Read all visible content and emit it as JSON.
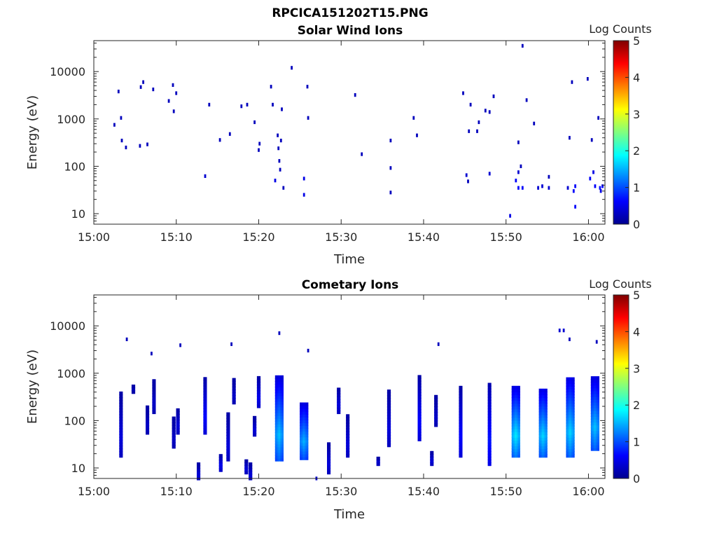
{
  "figure": {
    "title": "RPCICA151202T15.PNG"
  },
  "chart_data": [
    {
      "type": "heatmap",
      "title": "Solar Wind Ions",
      "xlabel": "Time",
      "ylabel": "Energy (eV)",
      "x_ticks": [
        "15:00",
        "15:10",
        "15:20",
        "15:30",
        "15:40",
        "15:50",
        "16:00"
      ],
      "xlim": [
        "15:00",
        "16:02"
      ],
      "y_scale": "log",
      "y_ticks": [
        "10",
        "100",
        "1000",
        "10000"
      ],
      "ylim": [
        6,
        45000
      ],
      "colorbar": {
        "label": "Log Counts",
        "ticks": [
          "0",
          "1",
          "2",
          "3",
          "4",
          "5"
        ],
        "range": [
          0,
          5
        ],
        "colormap": "jet"
      },
      "cells": [
        [
          "15:02.5",
          750,
          0.3
        ],
        [
          "15:03.0",
          3800,
          0.3
        ],
        [
          "15:03.3",
          1050,
          0.3
        ],
        [
          "15:03.4",
          350,
          0.3
        ],
        [
          "15:03.9",
          250,
          0.3
        ],
        [
          "15:05.6",
          270,
          0.3
        ],
        [
          "15:05.7",
          4700,
          0.3
        ],
        [
          "15:06.0",
          6000,
          0.3
        ],
        [
          "15:06.5",
          290,
          0.3
        ],
        [
          "15:07.2",
          4200,
          0.3
        ],
        [
          "15:09.1",
          2400,
          0.3
        ],
        [
          "15:09.6",
          5200,
          0.3
        ],
        [
          "15:09.7",
          1450,
          0.3
        ],
        [
          "15:10.0",
          3500,
          0.3
        ],
        [
          "15:13.5",
          62,
          0.4
        ],
        [
          "15:14.0",
          2000,
          0.3
        ],
        [
          "15:15.3",
          360,
          0.3
        ],
        [
          "15:16.5",
          480,
          0.3
        ],
        [
          "15:17.9",
          1850,
          0.3
        ],
        [
          "15:18.6",
          2000,
          0.3
        ],
        [
          "15:19.5",
          850,
          0.3
        ],
        [
          "15:20.0",
          220,
          0.3
        ],
        [
          "15:20.1",
          300,
          0.3
        ],
        [
          "15:21.5",
          4800,
          0.3
        ],
        [
          "15:21.7",
          2000,
          0.3
        ],
        [
          "15:22.0",
          50,
          0.5
        ],
        [
          "15:22.3",
          450,
          0.3
        ],
        [
          "15:22.4",
          240,
          0.3
        ],
        [
          "15:22.5",
          130,
          0.3
        ],
        [
          "15:22.6",
          85,
          0.3
        ],
        [
          "15:22.7",
          350,
          0.3
        ],
        [
          "15:22.8",
          1600,
          0.3
        ],
        [
          "15:23.0",
          35,
          0.3
        ],
        [
          "15:24.0",
          12000,
          0.3
        ],
        [
          "15:25.5",
          55,
          0.5
        ],
        [
          "15:25.5",
          25,
          0.5
        ],
        [
          "15:25.9",
          4800,
          0.3
        ],
        [
          "15:26.0",
          1050,
          0.3
        ],
        [
          "15:31.7",
          3200,
          0.3
        ],
        [
          "15:32.5",
          180,
          0.3
        ],
        [
          "15:36.0",
          350,
          0.3
        ],
        [
          "15:36.0",
          92,
          0.3
        ],
        [
          "15:36.0",
          28,
          0.3
        ],
        [
          "15:38.8",
          1050,
          0.3
        ],
        [
          "15:39.2",
          450,
          0.3
        ],
        [
          "15:44.8",
          3500,
          0.3
        ],
        [
          "15:45.2",
          65,
          0.4
        ],
        [
          "15:45.4",
          48,
          0.3
        ],
        [
          "15:45.5",
          550,
          0.3
        ],
        [
          "15:45.7",
          2000,
          0.3
        ],
        [
          "15:46.5",
          550,
          0.3
        ],
        [
          "15:46.7",
          850,
          0.3
        ],
        [
          "15:47.5",
          1500,
          0.3
        ],
        [
          "15:48.0",
          1400,
          0.3
        ],
        [
          "15:48.0",
          70,
          0.4
        ],
        [
          "15:48.5",
          3000,
          0.3
        ],
        [
          "15:50.5",
          9,
          0.5
        ],
        [
          "15:51.2",
          50,
          0.6
        ],
        [
          "15:51.5",
          35,
          0.6
        ],
        [
          "15:51.5",
          75,
          0.4
        ],
        [
          "15:51.5",
          320,
          0.3
        ],
        [
          "15:51.8",
          100,
          0.3
        ],
        [
          "15:52.0",
          35000,
          0.3
        ],
        [
          "15:52.0",
          35,
          0.6
        ],
        [
          "15:52.5",
          2500,
          0.3
        ],
        [
          "15:53.4",
          800,
          0.3
        ],
        [
          "15:53.9",
          35,
          0.4
        ],
        [
          "15:54.4",
          38,
          0.4
        ],
        [
          "15:55.2",
          35,
          0.4
        ],
        [
          "15:55.2",
          60,
          0.3
        ],
        [
          "15:57.5",
          35,
          0.4
        ],
        [
          "15:57.7",
          400,
          0.3
        ],
        [
          "15:58.0",
          6000,
          0.3
        ],
        [
          "15:58.2",
          30,
          0.6
        ],
        [
          "15:58.4",
          38,
          0.6
        ],
        [
          "15:58.4",
          14,
          0.6
        ],
        [
          "15:59.9",
          7000,
          0.3
        ],
        [
          "16:00.2",
          55,
          0.6
        ],
        [
          "16:00.4",
          360,
          0.3
        ],
        [
          "16:00.6",
          75,
          0.5
        ],
        [
          "16:00.8",
          38,
          0.6
        ],
        [
          "16:01.2",
          1050,
          0.3
        ],
        [
          "16:01.4",
          35,
          0.7
        ],
        [
          "16:01.7",
          38,
          0.6
        ],
        [
          "16:01.5",
          30,
          0.5
        ]
      ]
    },
    {
      "type": "heatmap",
      "title": "Cometary Ions",
      "xlabel": "Time",
      "ylabel": "Energy (eV)",
      "x_ticks": [
        "15:00",
        "15:10",
        "15:20",
        "15:30",
        "15:40",
        "15:50",
        "16:00"
      ],
      "xlim": [
        "15:00",
        "16:02"
      ],
      "y_scale": "log",
      "y_ticks": [
        "10",
        "100",
        "1000",
        "10000"
      ],
      "ylim": [
        6,
        45000
      ],
      "colorbar": {
        "label": "Log Counts",
        "ticks": [
          "0",
          "1",
          "2",
          "3",
          "4",
          "5"
        ],
        "range": [
          0,
          5
        ],
        "colormap": "jet"
      },
      "bursts": [
        {
          "t": "15:03.3",
          "e_lo": 18,
          "e_hi": 420,
          "peak": 0.5
        },
        {
          "t": "15:04.8",
          "e_lo": 400,
          "e_hi": 600,
          "peak": 0.3
        },
        {
          "t": "15:06.5",
          "e_lo": 55,
          "e_hi": 200,
          "peak": 0.4
        },
        {
          "t": "15:07.3",
          "e_lo": 150,
          "e_hi": 700,
          "peak": 0.4
        },
        {
          "t": "15:09.7",
          "e_lo": 28,
          "e_hi": 120,
          "peak": 0.4
        },
        {
          "t": "15:10.2",
          "e_lo": 55,
          "e_hi": 190,
          "peak": 0.5
        },
        {
          "t": "15:12.7",
          "e_lo": 6,
          "e_hi": 12,
          "peak": 0.5
        },
        {
          "t": "15:13.5",
          "e_lo": 55,
          "e_hi": 850,
          "peak": 0.7
        },
        {
          "t": "15:15.4",
          "e_lo": 9,
          "e_hi": 20,
          "peak": 0.6
        },
        {
          "t": "15:16.3",
          "e_lo": 15,
          "e_hi": 140,
          "peak": 0.5
        },
        {
          "t": "15:17.0",
          "e_lo": 240,
          "e_hi": 800,
          "peak": 0.4
        },
        {
          "t": "15:18.5",
          "e_lo": 8,
          "e_hi": 15,
          "peak": 0.5
        },
        {
          "t": "15:19.0",
          "e_lo": 6,
          "e_hi": 12,
          "peak": 0.5
        },
        {
          "t": "15:19.5",
          "e_lo": 50,
          "e_hi": 120,
          "peak": 0.5
        },
        {
          "t": "15:20.0",
          "e_lo": 200,
          "e_hi": 850,
          "peak": 0.6
        },
        {
          "t": "15:22.5",
          "e_lo": 15,
          "e_hi": 850,
          "peak": 1.6
        },
        {
          "t": "15:25.5",
          "e_lo": 16,
          "e_hi": 250,
          "peak": 1.5
        },
        {
          "t": "15:28.5",
          "e_lo": 8,
          "e_hi": 35,
          "peak": 0.5
        },
        {
          "t": "15:29.7",
          "e_lo": 150,
          "e_hi": 520,
          "peak": 0.5
        },
        {
          "t": "15:30.8",
          "e_lo": 18,
          "e_hi": 130,
          "peak": 0.5
        },
        {
          "t": "15:34.5",
          "e_lo": 12,
          "e_hi": 16,
          "peak": 0.5
        },
        {
          "t": "15:35.8",
          "e_lo": 30,
          "e_hi": 450,
          "peak": 0.5
        },
        {
          "t": "15:39.5",
          "e_lo": 40,
          "e_hi": 850,
          "peak": 0.7
        },
        {
          "t": "15:41.0",
          "e_lo": 12,
          "e_hi": 22,
          "peak": 0.5
        },
        {
          "t": "15:41.5",
          "e_lo": 80,
          "e_hi": 350,
          "peak": 0.4
        },
        {
          "t": "15:44.5",
          "e_lo": 18,
          "e_hi": 520,
          "peak": 0.7
        },
        {
          "t": "15:48.0",
          "e_lo": 12,
          "e_hi": 650,
          "peak": 0.8
        },
        {
          "t": "15:51.2",
          "e_lo": 18,
          "e_hi": 500,
          "peak": 1.8
        },
        {
          "t": "15:54.5",
          "e_lo": 18,
          "e_hi": 480,
          "peak": 1.7
        },
        {
          "t": "15:57.8",
          "e_lo": 18,
          "e_hi": 850,
          "peak": 1.7
        },
        {
          "t": "16:00.8",
          "e_lo": 25,
          "e_hi": 850,
          "peak": 1.6
        }
      ],
      "cells": [
        [
          "15:04.0",
          5200,
          0.3
        ],
        [
          "15:07.0",
          2600,
          0.3
        ],
        [
          "15:10.5",
          3900,
          0.3
        ],
        [
          "15:16.7",
          4100,
          0.3
        ],
        [
          "15:22.5",
          7000,
          0.3
        ],
        [
          "15:26.0",
          3000,
          0.3
        ],
        [
          "15:41.8",
          4100,
          0.3
        ],
        [
          "15:56.5",
          8000,
          0.4
        ],
        [
          "15:57.0",
          8000,
          0.4
        ],
        [
          "15:57.7",
          5200,
          0.3
        ],
        [
          "16:01.0",
          4600,
          0.3
        ],
        [
          "15:27.0",
          6,
          0.4
        ]
      ]
    }
  ]
}
